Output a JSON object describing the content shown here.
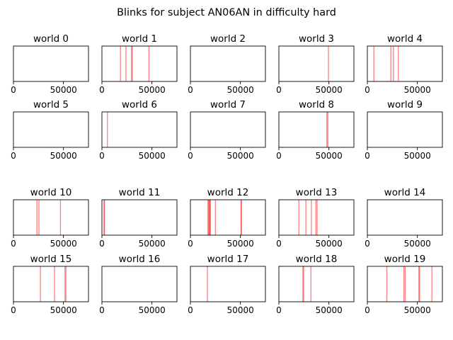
{
  "title": "Blinks for subject AN06AN in difficulty hard",
  "tick_labels": [
    "0",
    "50000"
  ],
  "colors": {
    "blink_line": "#ff0000",
    "axes": "#000000",
    "background": "#ffffff"
  },
  "chart_data": {
    "type": "event_raster_grid",
    "title": "Blinks for subject AN06AN in difficulty hard",
    "xlim": [
      0,
      75000
    ],
    "xticks": [
      0,
      50000
    ],
    "yticks": [],
    "grid": false,
    "line_alpha": 0.5,
    "panels": [
      {
        "title": "world 0",
        "events": []
      },
      {
        "title": "world 1",
        "events": [
          18500,
          24000,
          29500,
          30500,
          47000
        ]
      },
      {
        "title": "world 2",
        "events": []
      },
      {
        "title": "world 3",
        "events": [
          49500
        ]
      },
      {
        "title": "world 4",
        "events": [
          6500,
          23500,
          26000,
          31000
        ]
      },
      {
        "title": "world 5",
        "events": []
      },
      {
        "title": "world 6",
        "events": [
          5500
        ]
      },
      {
        "title": "world 7",
        "events": []
      },
      {
        "title": "world 8",
        "events": [
          48000,
          49000
        ]
      },
      {
        "title": "world 9",
        "events": []
      },
      {
        "title": "world 10",
        "events": [
          23500,
          25500,
          47000
        ]
      },
      {
        "title": "world 11",
        "events": [
          2000,
          2600
        ]
      },
      {
        "title": "world 12",
        "events": [
          17500,
          18300,
          18800,
          19500,
          20000,
          25000,
          50500,
          51200
        ]
      },
      {
        "title": "world 13",
        "events": [
          20000,
          27000,
          32500,
          37000,
          38200
        ]
      },
      {
        "title": "world 14",
        "events": []
      },
      {
        "title": "world 15",
        "events": [
          27000,
          41000,
          51500,
          52500
        ]
      },
      {
        "title": "world 16",
        "events": []
      },
      {
        "title": "world 17",
        "events": [
          17000
        ]
      },
      {
        "title": "world 18",
        "events": [
          24000,
          24800,
          32000
        ]
      },
      {
        "title": "world 19",
        "events": [
          19500,
          36500,
          37800,
          51500,
          52200,
          64500
        ]
      }
    ]
  }
}
